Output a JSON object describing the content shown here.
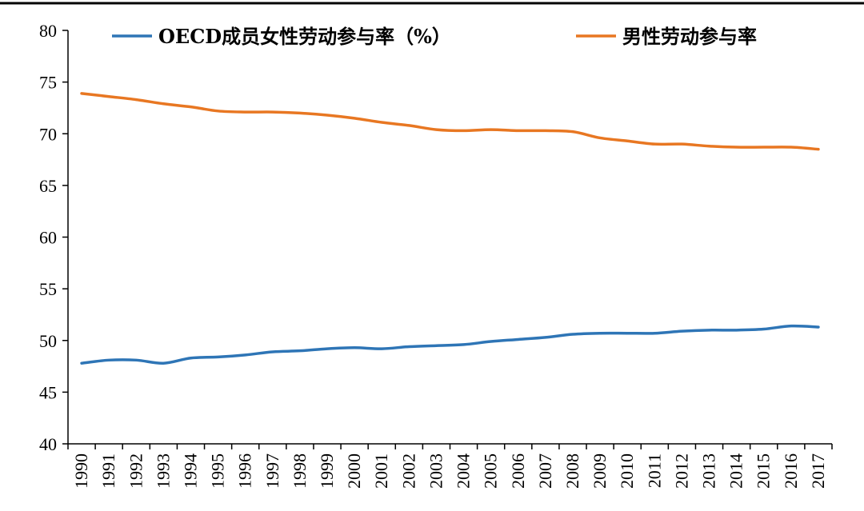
{
  "chart_data": {
    "type": "line",
    "title": "",
    "xlabel": "",
    "ylabel": "",
    "x": [
      "1990",
      "1991",
      "1992",
      "1993",
      "1994",
      "1995",
      "1996",
      "1997",
      "1998",
      "1999",
      "2000",
      "2001",
      "2002",
      "2003",
      "2004",
      "2005",
      "2006",
      "2007",
      "2008",
      "2009",
      "2010",
      "2011",
      "2012",
      "2013",
      "2014",
      "2015",
      "2016",
      "2017"
    ],
    "ylim": [
      40,
      80
    ],
    "yticks": [
      40,
      45,
      50,
      55,
      60,
      65,
      70,
      75,
      80
    ],
    "legend": "top",
    "grid": false,
    "series": [
      {
        "name": "OECD成员女性劳动参与率（%）",
        "color": "#2e75b6",
        "values": [
          47.8,
          48.1,
          48.1,
          47.8,
          48.3,
          48.4,
          48.6,
          48.9,
          49.0,
          49.2,
          49.3,
          49.2,
          49.4,
          49.5,
          49.6,
          49.9,
          50.1,
          50.3,
          50.6,
          50.7,
          50.7,
          50.7,
          50.9,
          51.0,
          51.0,
          51.1,
          51.4,
          51.3
        ]
      },
      {
        "name": "男性劳动参与率",
        "color": "#e87722",
        "values": [
          73.9,
          73.6,
          73.3,
          72.9,
          72.6,
          72.2,
          72.1,
          72.1,
          72.0,
          71.8,
          71.5,
          71.1,
          70.8,
          70.4,
          70.3,
          70.4,
          70.3,
          70.3,
          70.2,
          69.6,
          69.3,
          69.0,
          69.0,
          68.8,
          68.7,
          68.7,
          68.7,
          68.5
        ]
      }
    ]
  }
}
